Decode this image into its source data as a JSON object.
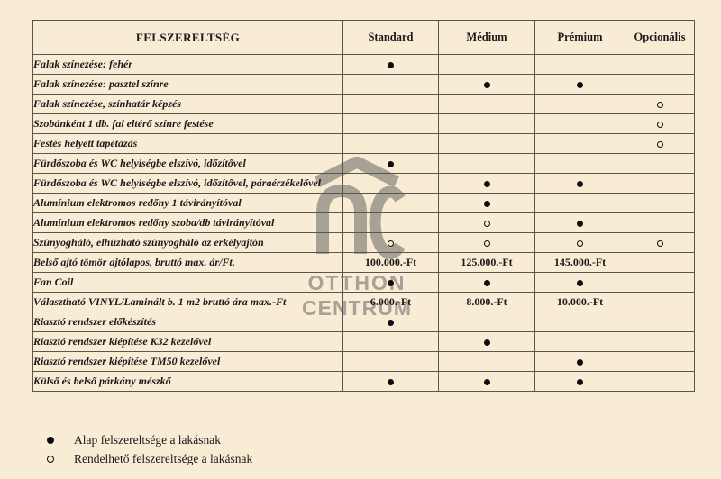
{
  "table": {
    "header": {
      "feature": "FELSZERELTSÉG",
      "columns": [
        "Standard",
        "Médium",
        "Prémium",
        "Opcionális"
      ]
    },
    "rows": [
      {
        "feature": "Falak színezése: fehér",
        "cells": [
          "filled",
          "",
          "",
          ""
        ]
      },
      {
        "feature": "Falak színezése: pasztel színre",
        "cells": [
          "",
          "filled",
          "filled",
          ""
        ]
      },
      {
        "feature": "Falak színezése, színhatár képzés",
        "cells": [
          "",
          "",
          "",
          "open"
        ]
      },
      {
        "feature": "Szobánként 1 db. fal eltérő színre festése",
        "cells": [
          "",
          "",
          "",
          "open"
        ]
      },
      {
        "feature": "Festés helyett tapétázás",
        "cells": [
          "",
          "",
          "",
          "open"
        ]
      },
      {
        "feature": "Fürdőszoba és WC helyiségbe elszívó, időzítővel",
        "cells": [
          "filled",
          "",
          "",
          ""
        ]
      },
      {
        "feature": "Fürdőszoba és WC helyiségbe elszívó, időzítővel, páraérzékelővel",
        "cells": [
          "",
          "filled",
          "filled",
          ""
        ]
      },
      {
        "feature": "Alumínium elektromos redőny 1 távirányítóval",
        "cells": [
          "",
          "filled",
          "",
          ""
        ]
      },
      {
        "feature": "Alumínium elektromos redőny szoba/db távirányítóval",
        "cells": [
          "",
          "open",
          "filled",
          ""
        ]
      },
      {
        "feature": "Szúnyogháló, elhúzható szúnyogháló az erkélyajtón",
        "cells": [
          "open",
          "open",
          "open",
          "open"
        ]
      },
      {
        "feature": "Belső ajtó tömör ajtólapos, bruttó max. ár/Ft.",
        "cells": [
          "100.000.-Ft",
          "125.000.-Ft",
          "145.000.-Ft",
          ""
        ]
      },
      {
        "feature": "Fan Coil",
        "cells": [
          "filled",
          "filled",
          "filled",
          ""
        ]
      },
      {
        "feature": "Választható VINYL/Laminált b. 1 m2 bruttó ára max.-Ft",
        "cells": [
          "6.000.-Ft",
          "8.000.-Ft",
          "10.000.-Ft",
          ""
        ]
      },
      {
        "feature": "Riasztó rendszer előkészítés",
        "cells": [
          "filled",
          "",
          "",
          ""
        ]
      },
      {
        "feature": "Riasztó rendszer kiépítése K32 kezelővel",
        "cells": [
          "",
          "filled",
          "",
          ""
        ]
      },
      {
        "feature": "Riasztó rendszer kiépítése TM50 kezelővel",
        "cells": [
          "",
          "",
          "filled",
          ""
        ]
      },
      {
        "feature": "Külső és belső párkány mészkő",
        "cells": [
          "filled",
          "filled",
          "filled",
          ""
        ]
      }
    ]
  },
  "legend": [
    {
      "symbol": "filled",
      "label": "Alap felszereltsége a lakásnak"
    },
    {
      "symbol": "open",
      "label": "Rendelhető felszereltsége a lakásnak"
    }
  ],
  "watermark": {
    "letters": "OC",
    "line1": "OTTHON",
    "line2": "CENTRUM"
  },
  "colors": {
    "background": "#f9ecd4",
    "border": "#5a554e",
    "text": "#1a1a1a",
    "watermark": "#a7a196",
    "marker": "#0d0d0d"
  }
}
